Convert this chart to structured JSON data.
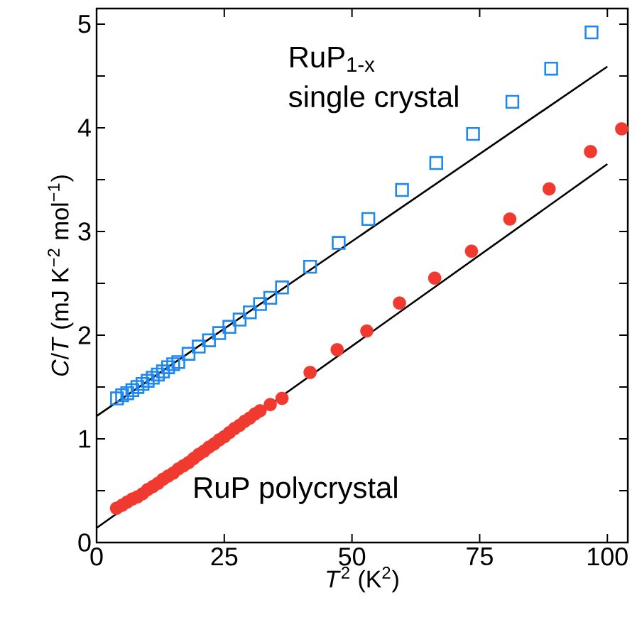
{
  "chart_data": {
    "type": "scatter",
    "xlabel": "*T*$^{2}$ (K$^{2}$)",
    "ylabel": "*C*/*T* (mJ K$^{−2}$ mol$^{−1}$)",
    "xlim": [
      0,
      104
    ],
    "ylim": [
      0,
      5.15
    ],
    "xticks": [
      0,
      25,
      50,
      75,
      100
    ],
    "yticks": [
      0,
      {
        "value": 0.5,
        "label": null
      },
      1,
      {
        "value": 1.5,
        "label": null
      },
      2,
      {
        "value": 2.5,
        "label": null
      },
      3,
      {
        "value": 3.5,
        "label": null
      },
      4,
      {
        "value": 4.5,
        "label": null
      },
      5
    ],
    "grid": false,
    "annotations": [
      "RuP$_{1-x}$",
      "single crystal",
      "RuP polycrystal"
    ],
    "series": [
      {
        "marker": "square",
        "color": "#1e88f0",
        "x": [
          4,
          5,
          6,
          7,
          8,
          9,
          10,
          11,
          12,
          13,
          14,
          15,
          16,
          18,
          20,
          22,
          24,
          26,
          28,
          30,
          32,
          34,
          36.3,
          41.8,
          47.4,
          53.2,
          59.8,
          66.5,
          73.7,
          81.4,
          89,
          96.9
        ],
        "values": [
          1.39,
          1.42,
          1.44,
          1.47,
          1.5,
          1.53,
          1.56,
          1.59,
          1.62,
          1.65,
          1.69,
          1.72,
          1.74,
          1.82,
          1.89,
          1.95,
          2.02,
          2.08,
          2.15,
          2.22,
          2.3,
          2.36,
          2.46,
          2.66,
          2.89,
          3.12,
          3.4,
          3.66,
          3.94,
          4.25,
          4.57,
          4.92
        ]
      },
      {
        "marker": "circle",
        "color": "#f03a30",
        "x": [
          3.9,
          5,
          6,
          7,
          8,
          9,
          10,
          11,
          12,
          13,
          14,
          15,
          16,
          17,
          18,
          19,
          20,
          21,
          22,
          23,
          24,
          25,
          26,
          27,
          28,
          29,
          30,
          31,
          32,
          34,
          36.3,
          41.8,
          47.1,
          52.9,
          59.3,
          66.2,
          73.4,
          80.9,
          88.6,
          96.7,
          102.8
        ],
        "values": [
          0.33,
          0.36,
          0.39,
          0.42,
          0.44,
          0.47,
          0.51,
          0.54,
          0.57,
          0.61,
          0.64,
          0.67,
          0.71,
          0.74,
          0.77,
          0.81,
          0.85,
          0.88,
          0.92,
          0.95,
          0.99,
          1.02,
          1.06,
          1.1,
          1.13,
          1.17,
          1.2,
          1.24,
          1.27,
          1.33,
          1.39,
          1.64,
          1.86,
          2.04,
          2.31,
          2.55,
          2.81,
          3.12,
          3.41,
          3.77,
          3.99
        ]
      },
      {
        "type": "line",
        "color": "#000000",
        "marker": "none",
        "line_style": "solid",
        "x": [
          0,
          100
        ],
        "values": [
          1.22,
          4.59
        ]
      },
      {
        "type": "line",
        "color": "#000000",
        "marker": "none",
        "line_style": "solid",
        "x": [
          0,
          100
        ],
        "values": [
          0.14,
          3.65
        ]
      }
    ]
  }
}
